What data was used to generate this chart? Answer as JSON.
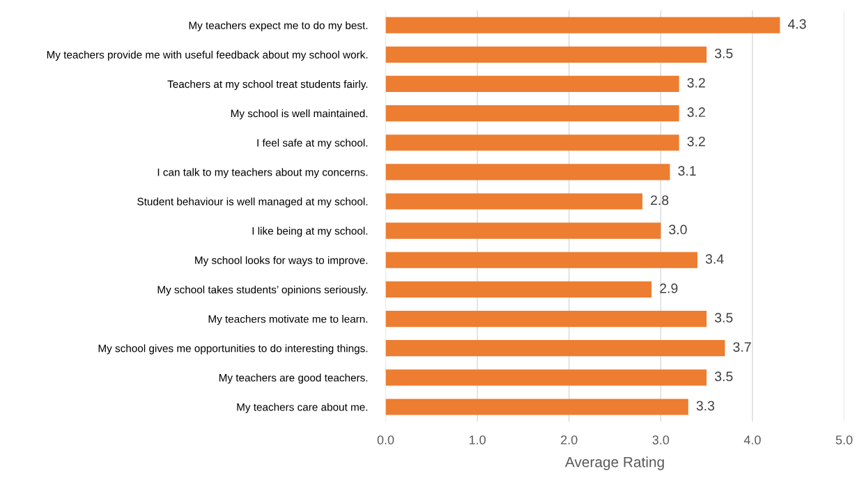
{
  "chart_data": {
    "type": "bar",
    "orientation": "horizontal",
    "xlabel": "Average Rating",
    "categories": [
      "My teachers expect me to do my best.",
      "My teachers provide me with useful feedback about my school work.",
      "Teachers at my school treat students fairly.",
      "My school is well maintained.",
      "I feel safe at my school.",
      "I can talk to my teachers about my concerns.",
      "Student behaviour is well managed at my school.",
      "I like being at my school.",
      "My school looks for ways to improve.",
      "My school takes students’ opinions seriously.",
      "My teachers motivate me to learn.",
      "My school gives me opportunities to do interesting things.",
      "My teachers are good teachers.",
      "My teachers care about me."
    ],
    "values": [
      4.3,
      3.5,
      3.2,
      3.2,
      3.2,
      3.1,
      2.8,
      3.0,
      3.4,
      2.9,
      3.5,
      3.7,
      3.5,
      3.3
    ],
    "value_labels": [
      "4.3",
      "3.5",
      "3.2",
      "3.2",
      "3.2",
      "3.1",
      "2.8",
      "3.0",
      "3.4",
      "2.9",
      "3.5",
      "3.7",
      "3.5",
      "3.3"
    ],
    "color": "#ed7d31",
    "xlim": [
      0,
      5
    ],
    "xticks": [
      {
        "value": 0,
        "label": "0.0"
      },
      {
        "value": 1,
        "label": "1.0"
      },
      {
        "value": 2,
        "label": "2.0"
      },
      {
        "value": 3,
        "label": "3.0"
      },
      {
        "value": 4,
        "label": "4.0"
      },
      {
        "value": 5,
        "label": "5.0"
      }
    ],
    "grid": "x"
  }
}
